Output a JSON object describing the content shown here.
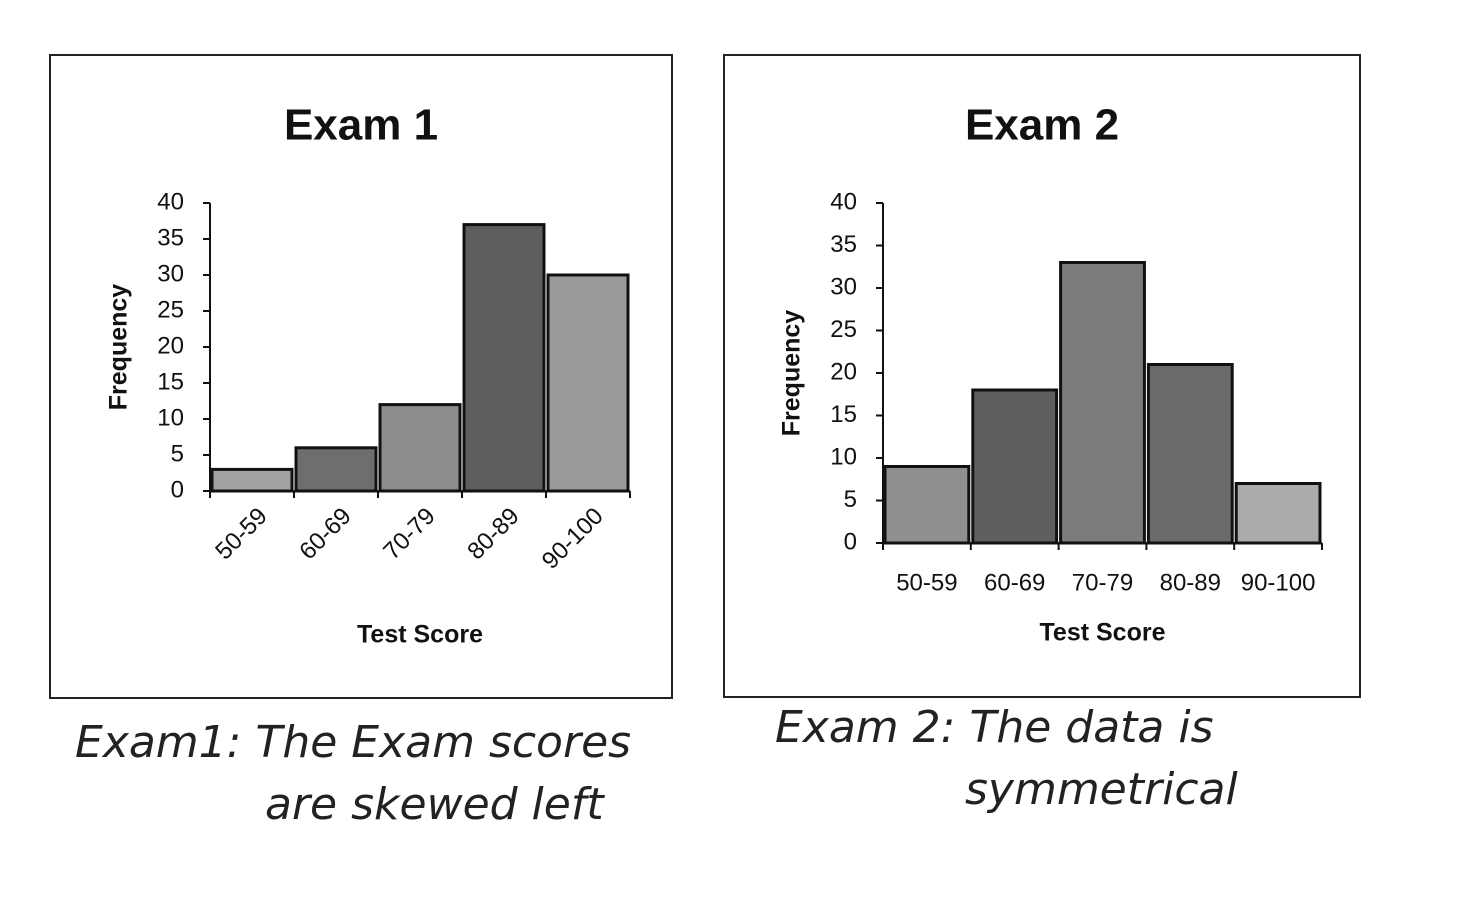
{
  "chart_data": [
    {
      "type": "bar",
      "title": "Exam 1",
      "x_label": "Test Score",
      "y_label": "Frequency",
      "categories": [
        "50-59",
        "60-69",
        "70-79",
        "80-89",
        "90-100"
      ],
      "values": [
        3,
        6,
        12,
        37,
        30
      ],
      "colors": [
        "#a3a3a3",
        "#6e6e6e",
        "#8c8c8c",
        "#5e5e5e",
        "#9a9a9a"
      ],
      "ylim": [
        0,
        40
      ],
      "yticks": [
        0,
        5,
        10,
        15,
        20,
        25,
        30,
        35,
        40
      ],
      "annotation": [
        "Exam1: The Exam scores",
        "are skewed left"
      ]
    },
    {
      "type": "bar",
      "title": "Exam 2",
      "x_label": "Test Score",
      "y_label": "Frequency",
      "categories": [
        "50-59",
        "60-69",
        "70-79",
        "80-89",
        "90-100"
      ],
      "values": [
        9,
        18,
        33,
        21,
        7
      ],
      "colors": [
        "#8f8f8f",
        "#5f5f5f",
        "#7c7c7c",
        "#6a6a6a",
        "#ababab"
      ],
      "ylim": [
        0,
        40
      ],
      "yticks": [
        0,
        5,
        10,
        15,
        20,
        25,
        30,
        35,
        40
      ],
      "annotation": [
        "Exam 2: The data is",
        "symmetrical"
      ]
    }
  ]
}
